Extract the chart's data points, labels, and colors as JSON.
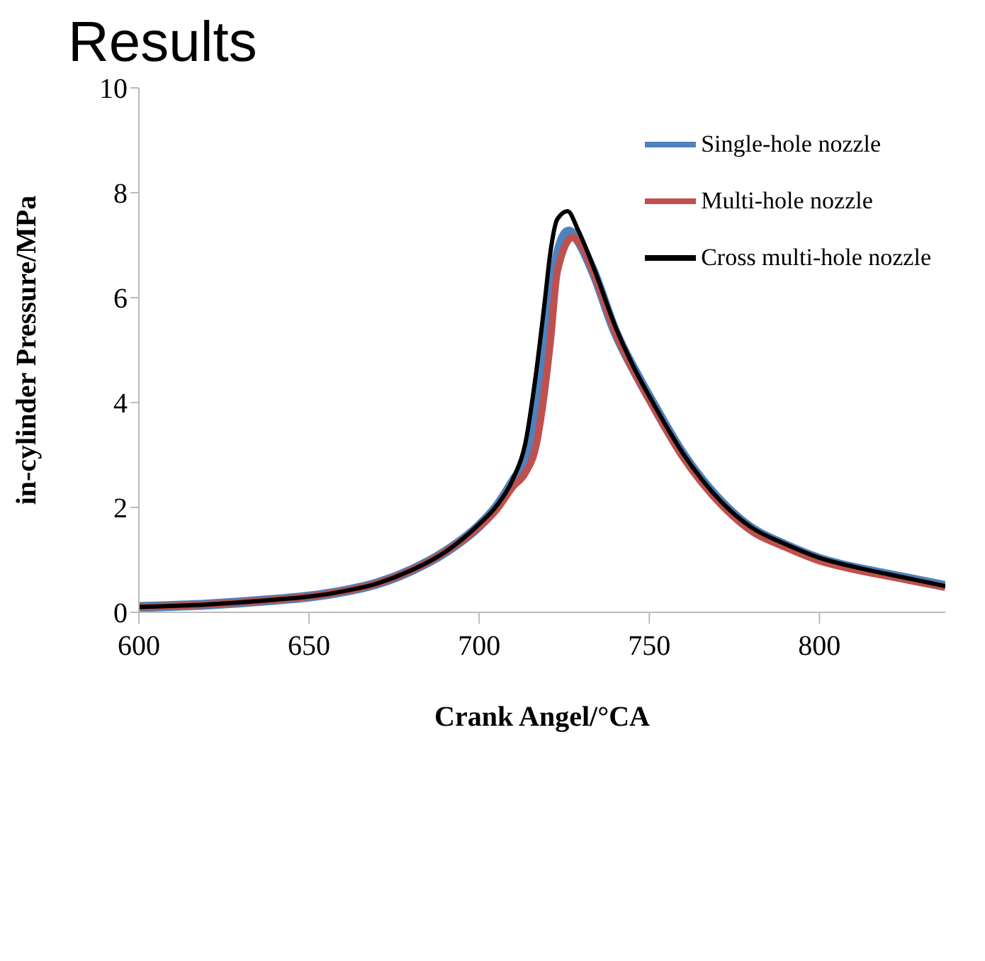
{
  "chart_data": {
    "type": "line",
    "title": "Results",
    "xlabel": "Crank Angel/°CA",
    "ylabel": "in-cylinder  Pressure/MPa",
    "xlim": [
      600,
      837
    ],
    "xticks": [
      600,
      650,
      700,
      750,
      800
    ],
    "ylim": [
      0,
      10
    ],
    "yticks": [
      0,
      2,
      4,
      6,
      8,
      10
    ],
    "grid": false,
    "legend": "top right",
    "marker": "none",
    "line_style": "solid",
    "series": [
      {
        "name": "Single-hole nozzle",
        "color": "#4f81bd",
        "x": [
          600,
          620,
          640,
          650,
          660,
          670,
          680,
          690,
          700,
          705,
          710,
          713.5,
          716.8,
          719.4,
          721,
          723,
          726.3,
          729,
          733.5,
          740,
          747,
          750,
          760,
          773,
          780,
          790,
          800,
          810,
          820,
          837
        ],
        "values": [
          0.1,
          0.15,
          0.24,
          0.3,
          0.4,
          0.55,
          0.8,
          1.15,
          1.65,
          2.0,
          2.5,
          2.9,
          3.9,
          5.1,
          5.9,
          6.8,
          7.26,
          7.1,
          6.5,
          5.35,
          4.45,
          4.1,
          3.0,
          1.98,
          1.6,
          1.28,
          1.02,
          0.85,
          0.72,
          0.5
        ]
      },
      {
        "name": "Multi-hole nozzle",
        "color": "#c0504d",
        "x": [
          600,
          620,
          640,
          650,
          660,
          670,
          680,
          690,
          700,
          705,
          710,
          713.5,
          716.8,
          719.4,
          721,
          723,
          727.5,
          730,
          733.5,
          740,
          747,
          750,
          760,
          773,
          780,
          790,
          800,
          810,
          820,
          837
        ],
        "values": [
          0.1,
          0.15,
          0.24,
          0.3,
          0.4,
          0.55,
          0.8,
          1.15,
          1.63,
          1.95,
          2.4,
          2.65,
          3.2,
          4.3,
          5.2,
          6.5,
          7.15,
          7.0,
          6.5,
          5.35,
          4.4,
          4.05,
          2.95,
          1.93,
          1.55,
          1.24,
          0.98,
          0.82,
          0.69,
          0.48
        ]
      },
      {
        "name": "Cross multi-hole nozzle",
        "color": "#000000",
        "x": [
          600,
          620,
          640,
          650,
          660,
          670,
          680,
          690,
          700,
          705,
          710,
          713.5,
          716.8,
          719.4,
          720.8,
          723,
          726,
          729,
          733.5,
          740.2,
          746.8,
          750,
          760,
          773,
          780,
          790,
          800,
          810,
          820,
          837
        ],
        "values": [
          0.1,
          0.15,
          0.24,
          0.3,
          0.4,
          0.55,
          0.8,
          1.15,
          1.68,
          2.02,
          2.55,
          3.2,
          4.6,
          6.0,
          6.8,
          7.5,
          7.65,
          7.3,
          6.6,
          5.42,
          4.5,
          4.12,
          3.02,
          1.99,
          1.62,
          1.3,
          1.04,
          0.87,
          0.73,
          0.5
        ]
      }
    ]
  }
}
